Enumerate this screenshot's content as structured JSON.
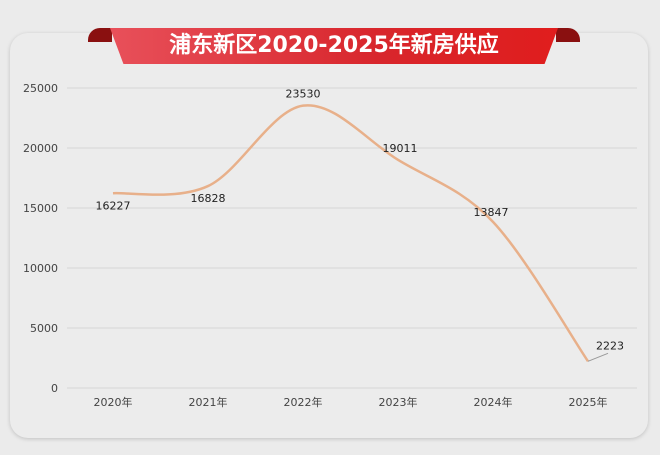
{
  "chart_data": {
    "type": "line",
    "title": "浦东新区2020-2025年新房供应",
    "categories": [
      "2020年",
      "2021年",
      "2022年",
      "2023年",
      "2024年",
      "2025年"
    ],
    "series": [
      {
        "values": [
          16227,
          16828,
          23530,
          19011,
          13847,
          2223
        ]
      }
    ],
    "data_labels": [
      "16227",
      "16828",
      "23530",
      "19011",
      "13847",
      "2223"
    ],
    "y_ticks": [
      "0",
      "5000",
      "10000",
      "15000",
      "20000",
      "25000"
    ],
    "ylim": [
      0,
      25000
    ],
    "grid": true,
    "smooth": true,
    "legend": "none",
    "colors": {
      "line": "#e8b08a",
      "title_ribbon": "#d8262c",
      "grid": "#d6d6d6"
    }
  }
}
